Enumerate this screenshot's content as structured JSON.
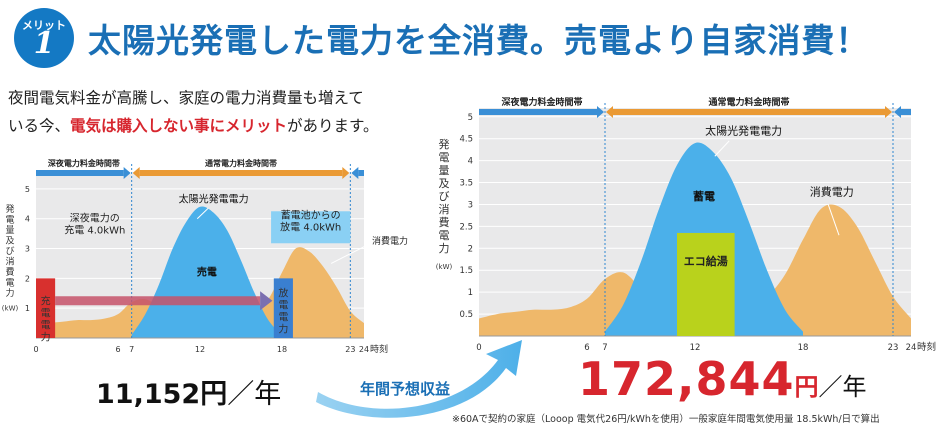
{
  "header": {
    "badge_label": "メリット",
    "badge_number": "1",
    "headline": "太陽光発電した電力を全消費。売電より自家消費！"
  },
  "intro": {
    "line1": "夜間電気料金が高騰し、家庭の電力消費量も増えて",
    "line2_prefix": "いる今、",
    "line2_highlight": "電気は購入しない事にメリット",
    "line2_suffix": "があります。"
  },
  "colors": {
    "accent_blue": "#1a6fb5",
    "night_band": "#3a8fd6",
    "day_band": "#ea9a35",
    "solar_fill": "#4bb0ea",
    "consumption_fill": "#efb86a",
    "eco_fill": "#b9d21c",
    "charge_fill": "#d8302e",
    "discharge_fill": "#3a7fd0",
    "price_red": "#d7262e"
  },
  "chart_data": [
    {
      "type": "area",
      "band_labels": [
        "深夜電力料金時間帯",
        "通常電力料金時間帯"
      ],
      "ylabel": "発電量及び消費電力",
      "yunit": "(kW)",
      "xlabel": "時刻",
      "x_ticks": [
        "0",
        "6",
        "7",
        "12",
        "18",
        "23",
        "24"
      ],
      "y_ticks": [
        "5",
        "4",
        "3",
        "2",
        "1"
      ],
      "ylim": [
        0,
        5.5
      ],
      "xlim": [
        0,
        24
      ],
      "grid": true,
      "series": [
        {
          "name": "太陽光発電電力",
          "x": [
            7,
            8,
            9,
            10,
            11,
            12,
            13,
            14,
            15,
            16,
            17,
            18
          ],
          "y": [
            0.1,
            0.8,
            1.8,
            3.0,
            3.9,
            4.4,
            4.2,
            3.6,
            2.6,
            1.5,
            0.6,
            0.1
          ]
        },
        {
          "name": "消費電力",
          "x": [
            0,
            1,
            2,
            3,
            4,
            5,
            6,
            7,
            8,
            9,
            10,
            11,
            12,
            13,
            14,
            15,
            16,
            17,
            18,
            19,
            20,
            21,
            22,
            23,
            24
          ],
          "y": [
            0.4,
            0.5,
            0.55,
            0.6,
            0.6,
            0.65,
            0.8,
            1.2,
            1.3,
            1.05,
            0.8,
            0.65,
            0.55,
            0.55,
            0.6,
            0.7,
            0.9,
            1.3,
            2.2,
            3.0,
            2.9,
            2.4,
            1.7,
            0.9,
            0.5
          ]
        }
      ],
      "annotations": {
        "solar_label": "太陽光発電電力",
        "sell_label": "売電",
        "charge_text": "深夜電力の",
        "charge_text2": "充電",
        "charge_value": "4.0kWh",
        "discharge_text": "蓄電池からの",
        "discharge_text2": "放電",
        "discharge_value": "4.0kWh",
        "consumption_label": "消費電力",
        "charge_bar_label": "充電電力",
        "discharge_bar_label": "放電電力"
      }
    },
    {
      "type": "area",
      "band_labels": [
        "深夜電力料金時間帯",
        "通常電力料金時間帯"
      ],
      "ylabel": "発電量及び消費電力",
      "yunit": "(kW)",
      "xlabel": "時刻",
      "x_ticks": [
        "0",
        "6",
        "7",
        "12",
        "18",
        "23",
        "24"
      ],
      "y_ticks": [
        "5",
        "4.5",
        "4",
        "3.5",
        "3",
        "2.5",
        "2",
        "1.5",
        "1",
        "0.5"
      ],
      "ylim": [
        0,
        5.2
      ],
      "xlim": [
        0,
        24
      ],
      "grid": true,
      "series": [
        {
          "name": "太陽光発電電力",
          "x": [
            7,
            8,
            9,
            10,
            11,
            12,
            13,
            14,
            15,
            16,
            17,
            18
          ],
          "y": [
            0.1,
            0.7,
            1.7,
            2.9,
            3.9,
            4.4,
            4.2,
            3.6,
            2.6,
            1.5,
            0.6,
            0.1
          ]
        },
        {
          "name": "消費電力",
          "x": [
            0,
            1,
            2,
            3,
            4,
            5,
            6,
            7,
            8,
            9,
            10,
            11,
            12,
            13,
            14,
            15,
            16,
            17,
            18,
            19,
            20,
            21,
            22,
            23,
            24
          ],
          "y": [
            0.4,
            0.5,
            0.55,
            0.6,
            0.6,
            0.65,
            0.85,
            1.3,
            1.45,
            1.1,
            0.85,
            0.65,
            0.55,
            0.55,
            0.6,
            0.7,
            0.9,
            1.4,
            2.2,
            2.9,
            2.95,
            2.5,
            1.7,
            0.9,
            0.4
          ]
        }
      ],
      "annotations": {
        "solar_label": "太陽光発電電力",
        "storage_label": "蓄電",
        "consumption_label": "消費電力",
        "eco_label": "エコ給湯"
      }
    }
  ],
  "comparison": {
    "small_price": "11,152円",
    "small_per": "／年",
    "arrow_label": "年間予想収益",
    "big_value": "172,844",
    "big_unit": "円",
    "big_per": "／年",
    "footnote": "※60Aで契約の家庭（Looop 電気代26円/kWhを使用）一般家庭年間電気使用量 18.5kWh/日で算出"
  }
}
